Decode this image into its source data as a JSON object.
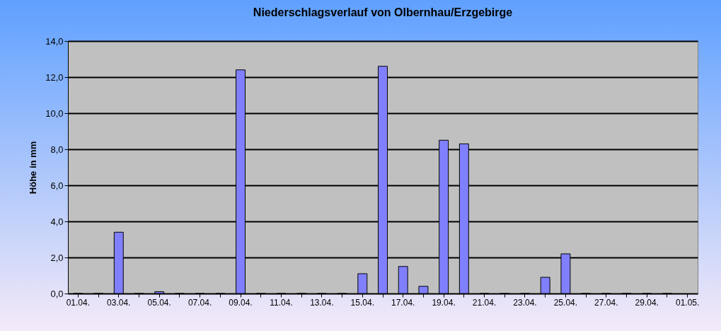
{
  "chart_data": {
    "type": "bar",
    "title": "Niederschlagsverlauf von Olbernhau/Erzgebirge",
    "ylabel": "Höhe in  mm",
    "categories": [
      "01.04.",
      null,
      "03.04.",
      null,
      "05.04.",
      null,
      "07.04.",
      null,
      "09.04.",
      null,
      "11.04.",
      null,
      "13.04.",
      null,
      "15.04.",
      null,
      "17.04.",
      null,
      "19.04.",
      null,
      "21.04.",
      null,
      "23.04.",
      null,
      "25.04.",
      null,
      "27.04.",
      null,
      "29.04.",
      null,
      "01.05."
    ],
    "values": [
      0,
      0,
      3.4,
      0,
      0.1,
      0,
      0,
      0,
      12.4,
      0,
      0,
      0,
      0,
      0,
      1.1,
      12.6,
      1.5,
      0.4,
      8.5,
      8.3,
      0,
      0,
      0,
      0.9,
      2.2,
      0,
      0,
      0,
      0,
      0,
      null
    ],
    "color": "#8080ff",
    "ylim": [
      0,
      14
    ],
    "yticks": [
      {
        "value": 0,
        "label": "0,0"
      },
      {
        "value": 2,
        "label": "2,0"
      },
      {
        "value": 4,
        "label": "4,0"
      },
      {
        "value": 6,
        "label": "6,0"
      },
      {
        "value": 8,
        "label": "8,0"
      },
      {
        "value": 10,
        "label": "10,0"
      },
      {
        "value": 12,
        "label": "12,0"
      },
      {
        "value": 14,
        "label": "14,0"
      }
    ],
    "grid": "y"
  }
}
